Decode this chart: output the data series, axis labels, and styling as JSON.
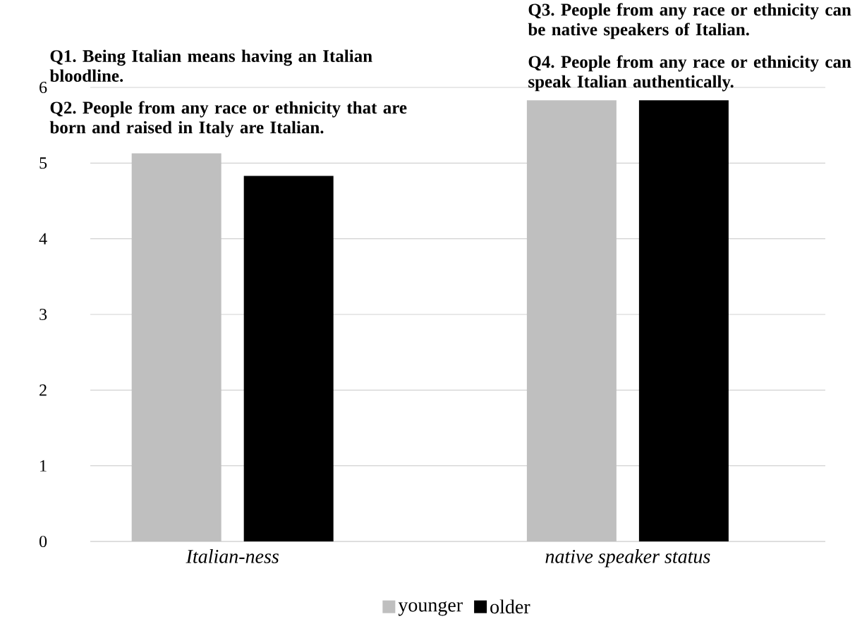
{
  "chart_data": {
    "type": "bar",
    "categories": [
      "Italian-ness",
      "native speaker status"
    ],
    "series": [
      {
        "name": "younger",
        "color": "#bfbfbf",
        "values": [
          5.13,
          5.83
        ]
      },
      {
        "name": "older",
        "color": "#000000",
        "values": [
          4.83,
          5.83
        ]
      }
    ],
    "ylim": [
      0,
      6
    ],
    "yticks": [
      0,
      1,
      2,
      3,
      4,
      5,
      6
    ],
    "grid": "y",
    "legend": "bottom",
    "annotations": [
      "**Q1. Being Italian means having an Italian bloodline.**",
      "**Q2. People from any race or ethnicity that are born and raised in Italy are Italian.**",
      "**Q3. People from any race or ethnicity can be native speakers of Italian.**",
      "**Q4. People from any race or ethnicity can speak Italian authentically.**"
    ]
  }
}
